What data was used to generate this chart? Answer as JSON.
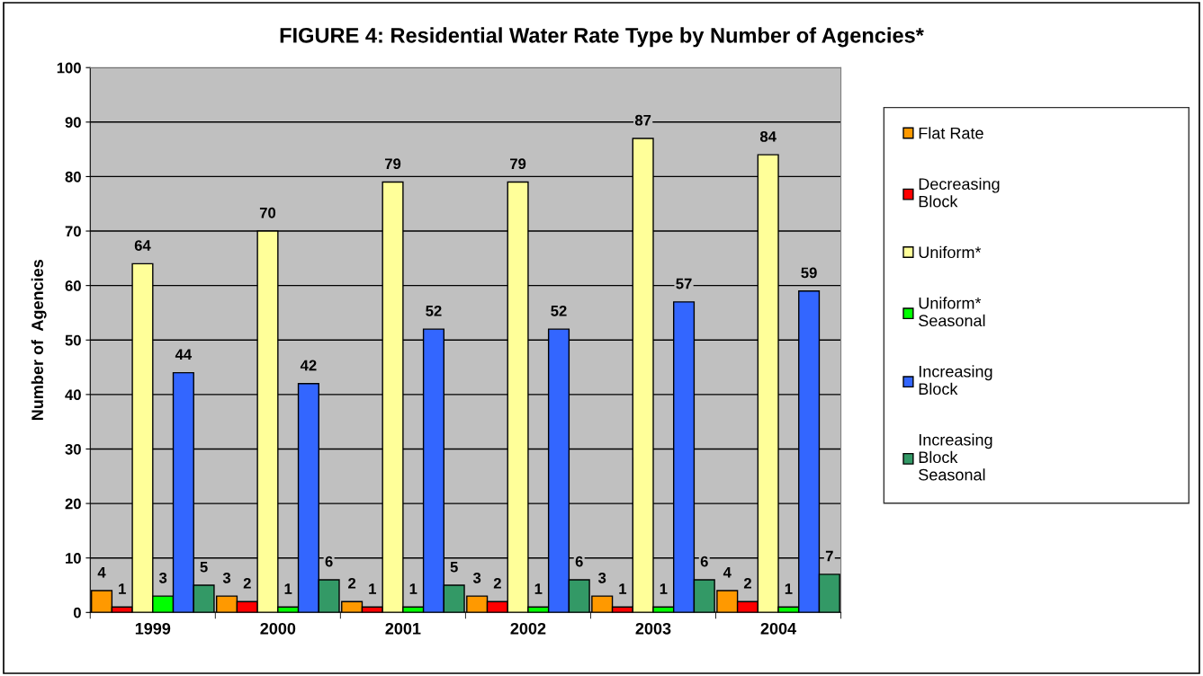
{
  "chart_data": {
    "type": "bar",
    "title": "FIGURE 4: Residential Water Rate Type by Number of Agencies*",
    "ylabel": "Number of  Agencies",
    "categories": [
      "1999",
      "2000",
      "2001",
      "2002",
      "2003",
      "2004"
    ],
    "series": [
      {
        "name": "Flat Rate",
        "color": "#ff9900",
        "values": [
          4,
          3,
          2,
          3,
          3,
          4
        ]
      },
      {
        "name": "Decreasing\nBlock",
        "color": "#ff0000",
        "values": [
          1,
          2,
          1,
          2,
          1,
          2
        ]
      },
      {
        "name": "Uniform*",
        "color": "#ffff99",
        "values": [
          64,
          70,
          79,
          79,
          87,
          84
        ]
      },
      {
        "name": "Uniform*\nSeasonal",
        "color": "#00ff00",
        "values": [
          3,
          1,
          1,
          1,
          1,
          1
        ]
      },
      {
        "name": "Increasing\nBlock",
        "color": "#3366ff",
        "values": [
          44,
          42,
          52,
          52,
          57,
          59
        ]
      },
      {
        "name": "Increasing\nBlock\nSeasonal",
        "color": "#339966",
        "values": [
          5,
          6,
          5,
          6,
          6,
          7
        ]
      }
    ],
    "ylim": [
      0,
      100
    ],
    "yticks": [
      0,
      10,
      20,
      30,
      40,
      50,
      60,
      70,
      80,
      90,
      100
    ],
    "grid": "y",
    "legend": "right",
    "data_labels": true
  }
}
